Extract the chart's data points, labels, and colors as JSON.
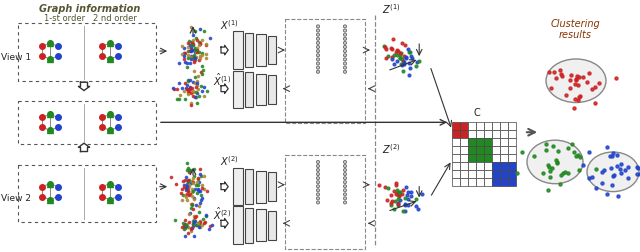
{
  "bg_color": "#ffffff",
  "title_text": "Graph information",
  "subtitle_text": "1-st order   2 nd order",
  "view1_label": "View 1",
  "view2_label": "View 2",
  "clustering_label": "Clustering\nresults",
  "label_C": "C",
  "colors": {
    "red": "#cc2222",
    "green": "#228822",
    "blue": "#2244cc",
    "orange": "#cc6600",
    "light_gray": "#dddddd",
    "dark_gray": "#555555",
    "arrow_color": "#333333",
    "dashed_color": "#333333",
    "title_color": "#555533"
  }
}
